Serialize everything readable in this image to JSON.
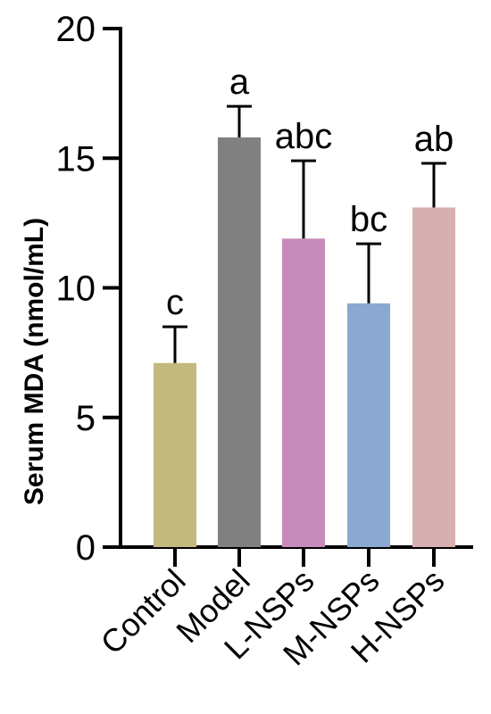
{
  "chart_data": {
    "type": "bar",
    "title": "",
    "xlabel": "",
    "ylabel": "Serum MDA (nmol/mL)",
    "ylim": [
      0,
      20
    ],
    "yticks": [
      "0",
      "5",
      "10",
      "15",
      "20"
    ],
    "grid": false,
    "categories": [
      "Control",
      "Model",
      "L-NSPs",
      "M-NSPs",
      "H-NSPs"
    ],
    "values": [
      7.1,
      15.8,
      11.9,
      9.4,
      13.1
    ],
    "error_upper": [
      1.4,
      1.2,
      3.0,
      2.3,
      1.7
    ],
    "significance_letters": [
      "c",
      "a",
      "abc",
      "bc",
      "ab"
    ],
    "colors": [
      "#c2b97e",
      "#808080",
      "#c68cb9",
      "#8aa8d2",
      "#d6b0b0"
    ]
  }
}
